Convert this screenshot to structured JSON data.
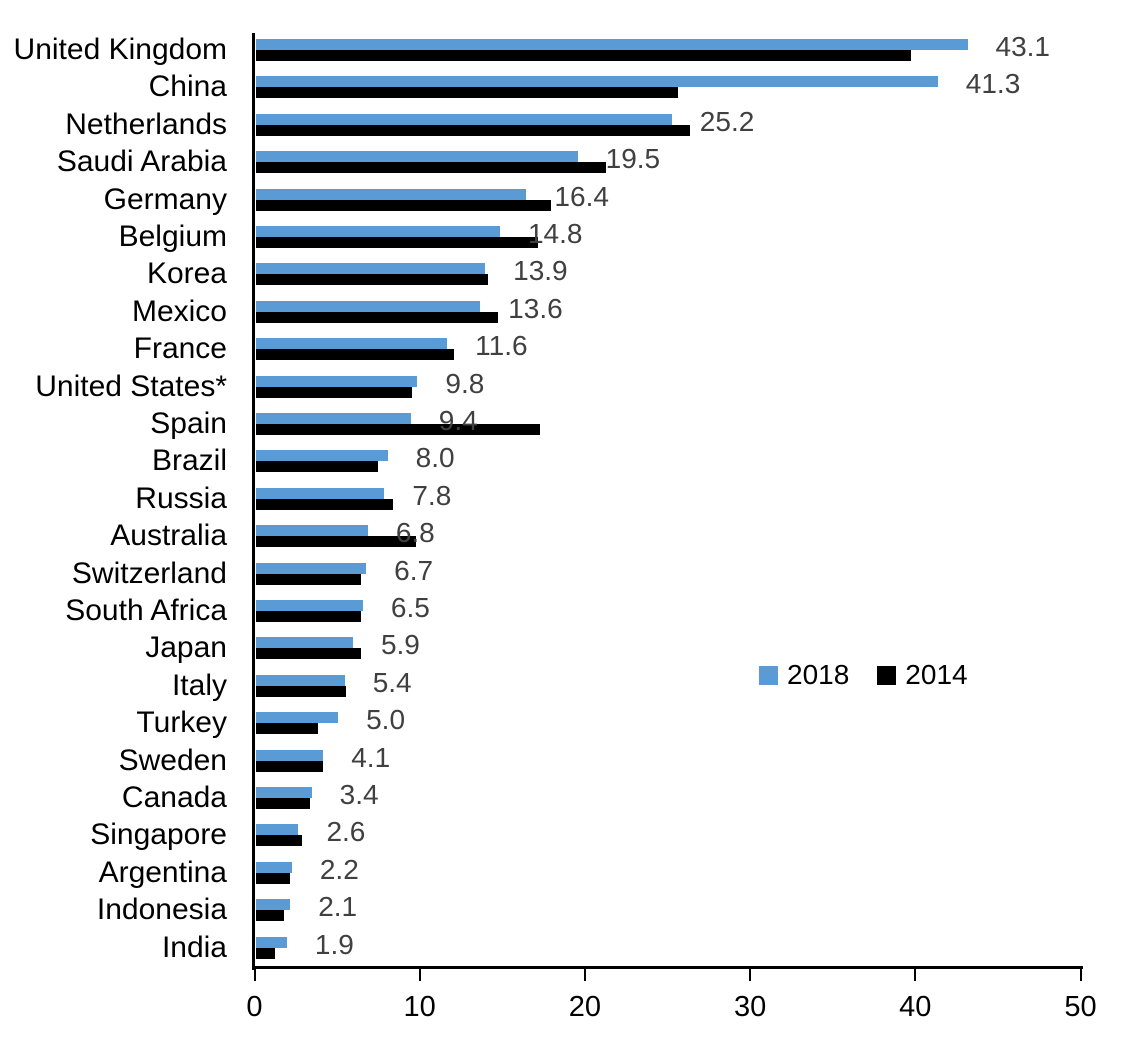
{
  "chart_data": {
    "type": "bar",
    "orientation": "horizontal",
    "title": "",
    "xlabel": "",
    "ylabel": "",
    "xlim": [
      0,
      50
    ],
    "x_ticks": [
      "0",
      "10",
      "20",
      "30",
      "40",
      "50"
    ],
    "grid": false,
    "legend_position": "middle-right",
    "categories": [
      "United Kingdom",
      "China",
      "Netherlands",
      "Saudi Arabia",
      "Germany",
      "Belgium",
      "Korea",
      "Mexico",
      "France",
      "United States*",
      "Spain",
      "Brazil",
      "Russia",
      "Australia",
      "Switzerland",
      "South Africa",
      "Japan",
      "Italy",
      "Turkey",
      "Sweden",
      "Canada",
      "Singapore",
      "Argentina",
      "Indonesia",
      "India"
    ],
    "series": [
      {
        "name": "2018",
        "color": "#5B9BD5",
        "values": [
          43.1,
          41.3,
          25.2,
          19.5,
          16.4,
          14.8,
          13.9,
          13.6,
          11.6,
          9.8,
          9.4,
          8.0,
          7.8,
          6.8,
          6.7,
          6.5,
          5.9,
          5.4,
          5.0,
          4.1,
          3.4,
          2.6,
          2.2,
          2.1,
          1.9
        ],
        "data_labels": [
          "43.1",
          "41.3",
          "25.2",
          "19.5",
          "16.4",
          "14.8",
          "13.9",
          "13.6",
          "11.6",
          "9.8",
          "9.4",
          "8.0",
          "7.8",
          "6.8",
          "6.7",
          "6.5",
          "5.9",
          "5.4",
          "5.0",
          "4.1",
          "3.4",
          "2.6",
          "2.2",
          "2.1",
          "1.9"
        ]
      },
      {
        "name": "2014",
        "color": "#000000",
        "values": [
          39.7,
          25.6,
          26.3,
          21.2,
          17.9,
          17.1,
          14.1,
          14.7,
          12.0,
          9.5,
          17.2,
          7.4,
          8.3,
          9.7,
          6.4,
          6.4,
          6.4,
          5.5,
          3.8,
          4.1,
          3.3,
          2.8,
          2.1,
          1.7,
          1.2
        ],
        "data_labels": []
      }
    ],
    "value_label_color": "#404040",
    "axis_color": "#000000"
  }
}
